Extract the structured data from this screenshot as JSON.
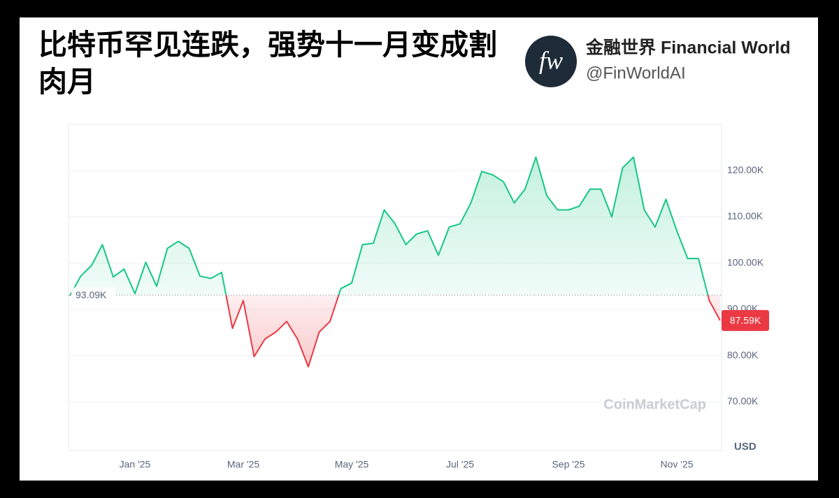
{
  "header": {
    "title": "比特币罕见连跌，强势十一月变成割肉月",
    "logo_text": "fw",
    "brand_name": "金融世界 Financial World",
    "handle": "@FinWorldAI"
  },
  "chart_data": {
    "type": "line",
    "categories": [
      null,
      null,
      null,
      null,
      null,
      null,
      "Jan '25",
      null,
      null,
      null,
      null,
      null,
      null,
      null,
      null,
      null,
      "Mar '25",
      null,
      null,
      null,
      null,
      null,
      null,
      null,
      null,
      null,
      "May '25",
      null,
      null,
      null,
      null,
      null,
      null,
      null,
      null,
      null,
      "Jul '25",
      null,
      null,
      null,
      null,
      null,
      null,
      null,
      null,
      null,
      "Sep '25",
      null,
      null,
      null,
      null,
      null,
      null,
      null,
      null,
      null,
      "Nov '25",
      null,
      null,
      null,
      null
    ],
    "values": [
      93000,
      97200,
      99500,
      104000,
      97000,
      98700,
      93400,
      100200,
      95000,
      103200,
      104700,
      103200,
      97200,
      96700,
      98000,
      85900,
      91900,
      79800,
      83600,
      85100,
      87400,
      83600,
      77600,
      85100,
      87400,
      94500,
      95700,
      104000,
      104300,
      111500,
      108500,
      104000,
      106300,
      107000,
      101700,
      107800,
      108500,
      113000,
      119800,
      119100,
      117600,
      113000,
      116000,
      122900,
      114600,
      111500,
      111500,
      112300,
      116000,
      116000,
      110000,
      120600,
      122900,
      111500,
      107800,
      113800,
      107000,
      101000,
      101000,
      91900,
      87590
    ],
    "ylim": [
      59500,
      130000
    ],
    "yticks": [
      {
        "value": 70000,
        "label": "70.00K"
      },
      {
        "value": 80000,
        "label": "80.00K"
      },
      {
        "value": 90000,
        "label": "90.00K"
      },
      {
        "value": 100000,
        "label": "100.00K"
      },
      {
        "value": 110000,
        "label": "110.00K"
      },
      {
        "value": 120000,
        "label": "120.00K"
      }
    ],
    "baseline": {
      "value": 93090,
      "label": "93.09K"
    },
    "last_price": {
      "value": 87590,
      "label": "87.59K"
    },
    "up_color": "#16c784",
    "down_color": "#ea3943",
    "grid": true,
    "unit_label": "USD",
    "watermark": "CoinMarketCap"
  }
}
